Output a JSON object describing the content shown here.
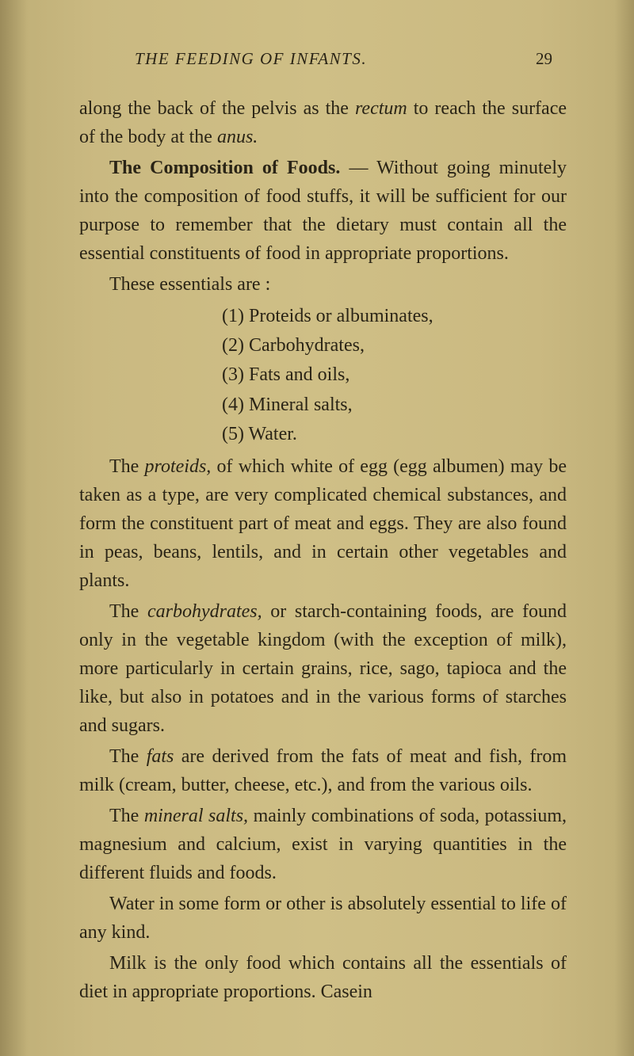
{
  "header": {
    "running_title": "THE FEEDING OF INFANTS.",
    "page_number": "29"
  },
  "paragraphs": {
    "p1_pre": "along the back of the pelvis as the ",
    "p1_italic": "rectum",
    "p1_mid": " to reach the surface of the body at the ",
    "p1_italic2": "anus.",
    "p2_heading": "The Composition of Foods.",
    "p2_text": " — Without going minutely into the composition of food stuffs, it will be sufficient for our purpose to remember that the dietary must contain all the essential constituents of food in appropriate proportions.",
    "p3": "These essentials are :",
    "list": {
      "i1": "(1) Proteids or albuminates,",
      "i2": "(2) Carbohydrates,",
      "i3": "(3) Fats and oils,",
      "i4": "(4) Mineral salts,",
      "i5": "(5) Water."
    },
    "p4_pre": "The ",
    "p4_italic": "proteids,",
    "p4_text": " of which white of egg (egg albumen) may be taken as a type, are very complicated chemical substances, and form the constituent part of meat and eggs. They are also found in peas, beans, lentils, and in certain other vegetables and plants.",
    "p5_pre": "The ",
    "p5_italic": "carbohydrates,",
    "p5_text": " or starch-containing foods, are found only in the vegetable kingdom (with the exception of milk), more particularly in certain grains, rice, sago, tapioca and the like, but also in potatoes and in the various forms of starches and sugars.",
    "p6_pre": "The ",
    "p6_italic": "fats",
    "p6_text": " are derived from the fats of meat and fish, from milk (cream, butter, cheese, etc.), and from the various oils.",
    "p7_pre": "The ",
    "p7_italic": "mineral salts,",
    "p7_text": " mainly combinations of soda, potassium, magnesium and calcium, exist in varying quantities in the different fluids and foods.",
    "p8": "Water in some form or other is absolutely essential to life of any kind.",
    "p9": "Milk is the only food which contains all the essentials of diet in appropriate proportions. Casein"
  },
  "colors": {
    "background": "#c9b880",
    "text": "#2a2416"
  }
}
